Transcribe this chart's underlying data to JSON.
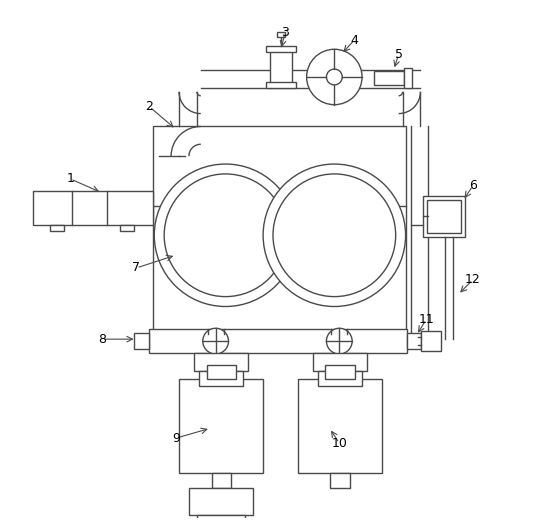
{
  "bg_color": "#ffffff",
  "line_color": "#4a4a4a",
  "lw": 1.0,
  "fig_w": 5.47,
  "fig_h": 5.21,
  "dpi": 100
}
